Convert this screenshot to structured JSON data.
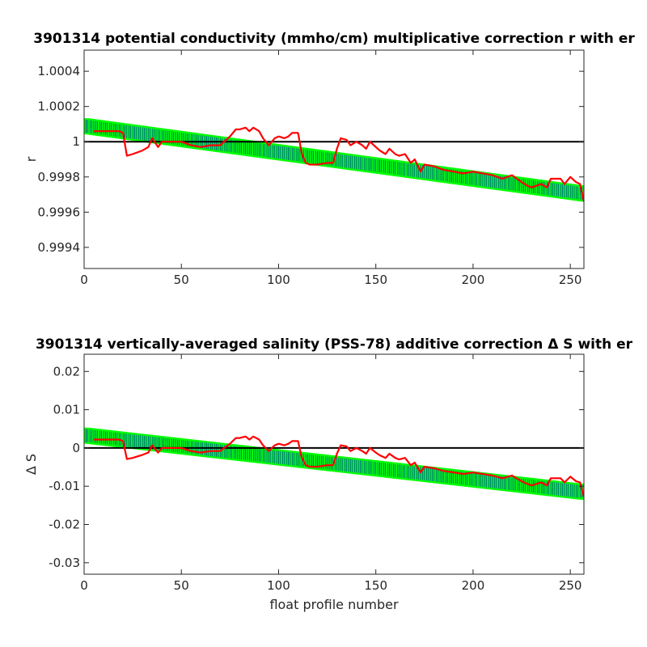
{
  "chart_data": [
    {
      "type": "line",
      "title": "3901314 potential conductivity (mmho/cm) multiplicative correction r with er",
      "xlabel": "",
      "ylabel": "r",
      "xlim": [
        0,
        257
      ],
      "ylim": [
        0.99928,
        1.00052
      ],
      "x_ticks": [
        0,
        50,
        100,
        150,
        200,
        250
      ],
      "x_tick_labels": [
        "0",
        "50",
        "100",
        "150",
        "200",
        "250"
      ],
      "y_ticks": [
        0.9994,
        0.9996,
        0.9998,
        1,
        1.0002,
        1.0004
      ],
      "y_tick_labels": [
        "0.9994",
        "0.9996",
        "0.9998",
        "1",
        "1.0002",
        "1.0004"
      ],
      "grid": false,
      "reference_line": {
        "y": 1,
        "color": "#000000"
      },
      "colors": {
        "fit": "#00ff00",
        "error": "#0000ff",
        "raw": "#ff0000",
        "reference": "#000000"
      },
      "series": [
        {
          "role": "fit-with-error",
          "x": [
            0,
            257
          ],
          "y": [
            1.00009,
            0.999705
          ],
          "err": [
            4e-05,
            4e-05
          ]
        },
        {
          "role": "raw",
          "x": [
            5,
            10,
            15,
            18,
            20,
            22,
            25,
            30,
            33,
            35,
            38,
            40,
            45,
            50,
            55,
            60,
            65,
            70,
            72,
            75,
            78,
            80,
            83,
            85,
            87,
            90,
            92,
            95,
            98,
            100,
            103,
            105,
            107,
            110,
            112,
            114,
            116,
            118,
            120,
            125,
            128,
            130,
            132,
            135,
            137,
            140,
            143,
            145,
            147,
            150,
            152,
            155,
            157,
            160,
            162,
            165,
            168,
            170,
            173,
            175,
            180,
            185,
            190,
            195,
            200,
            205,
            210,
            215,
            220,
            225,
            228,
            230,
            235,
            238,
            240,
            245,
            247,
            250,
            253,
            255,
            257
          ],
          "y": [
            1.00006,
            1.00006,
            1.00006,
            1.00006,
            1.00005,
            0.99992,
            0.99993,
            0.99995,
            0.99997,
            1.00002,
            0.99997,
            1.0,
            1.0,
            1.0,
            0.99998,
            0.99997,
            0.99998,
            0.99998,
            1.0,
            1.00003,
            1.00007,
            1.00007,
            1.00008,
            1.00006,
            1.00008,
            1.00006,
            1.00002,
            0.99998,
            1.00002,
            1.00003,
            1.00002,
            1.00003,
            1.00005,
            1.00005,
            0.99993,
            0.99988,
            0.99987,
            0.99987,
            0.99987,
            0.99988,
            0.99988,
            0.99996,
            1.00002,
            1.00001,
            0.99998,
            1.0,
            0.99998,
            0.99996,
            1.0,
            0.99997,
            0.99995,
            0.99993,
            0.99996,
            0.99993,
            0.99992,
            0.99993,
            0.99988,
            0.9999,
            0.99983,
            0.99987,
            0.99986,
            0.99984,
            0.99983,
            0.99982,
            0.99983,
            0.99982,
            0.99981,
            0.99979,
            0.99981,
            0.99977,
            0.99975,
            0.99974,
            0.99976,
            0.99974,
            0.99979,
            0.99979,
            0.99976,
            0.9998,
            0.99977,
            0.99976,
            0.99966
          ]
        }
      ]
    },
    {
      "type": "line",
      "title": "3901314 vertically-averaged salinity (PSS-78) additive correction Δ S with er",
      "xlabel": "float profile number",
      "ylabel": "Δ S",
      "xlim": [
        0,
        257
      ],
      "ylim": [
        -0.033,
        0.0245
      ],
      "x_ticks": [
        0,
        50,
        100,
        150,
        200,
        250
      ],
      "x_tick_labels": [
        "0",
        "50",
        "100",
        "150",
        "200",
        "250"
      ],
      "y_ticks": [
        -0.03,
        -0.02,
        -0.01,
        0,
        0.01,
        0.02
      ],
      "y_tick_labels": [
        "-0.03",
        "-0.02",
        "-0.01",
        "0",
        "0.01",
        "0.02"
      ],
      "grid": false,
      "reference_line": {
        "y": 0,
        "color": "#000000"
      },
      "colors": {
        "fit": "#00ff00",
        "error": "#0000ff",
        "raw": "#ff0000",
        "reference": "#000000"
      },
      "series": [
        {
          "role": "fit-with-error",
          "x": [
            0,
            257
          ],
          "y": [
            0.0033,
            -0.0115
          ],
          "err": [
            0.0019,
            0.0019
          ]
        },
        {
          "role": "raw",
          "x": [
            5,
            10,
            15,
            18,
            20,
            22,
            25,
            30,
            33,
            35,
            38,
            40,
            45,
            50,
            55,
            60,
            65,
            70,
            72,
            75,
            78,
            80,
            83,
            85,
            87,
            90,
            92,
            95,
            98,
            100,
            103,
            105,
            107,
            110,
            112,
            114,
            116,
            118,
            120,
            125,
            128,
            130,
            132,
            135,
            137,
            140,
            143,
            145,
            147,
            150,
            152,
            155,
            157,
            160,
            162,
            165,
            168,
            170,
            173,
            175,
            180,
            185,
            190,
            195,
            200,
            205,
            210,
            215,
            220,
            225,
            228,
            230,
            235,
            238,
            240,
            245,
            247,
            250,
            253,
            255,
            257
          ],
          "y": [
            0.0022,
            0.0022,
            0.0022,
            0.0022,
            0.0018,
            -0.0029,
            -0.0026,
            -0.0018,
            -0.0012,
            0.0007,
            -0.0012,
            0.0,
            0.0,
            0.0,
            -0.0008,
            -0.0012,
            -0.0008,
            -0.0008,
            0.0,
            0.0011,
            0.0026,
            0.0026,
            0.003,
            0.0022,
            0.003,
            0.0022,
            0.0007,
            -0.0008,
            0.0007,
            0.0011,
            0.0007,
            0.0011,
            0.0018,
            0.0018,
            -0.0026,
            -0.0045,
            -0.0049,
            -0.0049,
            -0.0049,
            -0.0045,
            -0.0045,
            -0.0015,
            0.0007,
            0.0004,
            -0.0008,
            0.0,
            -0.0008,
            -0.0015,
            0.0,
            -0.0012,
            -0.0019,
            -0.0026,
            -0.0015,
            -0.0026,
            -0.003,
            -0.0026,
            -0.0045,
            -0.0038,
            -0.0064,
            -0.0049,
            -0.0053,
            -0.006,
            -0.0064,
            -0.0068,
            -0.0064,
            -0.0068,
            -0.0072,
            -0.0079,
            -0.0072,
            -0.0087,
            -0.0094,
            -0.0098,
            -0.009,
            -0.0098,
            -0.0079,
            -0.0079,
            -0.009,
            -0.0075,
            -0.0087,
            -0.009,
            -0.0128
          ]
        }
      ]
    }
  ]
}
